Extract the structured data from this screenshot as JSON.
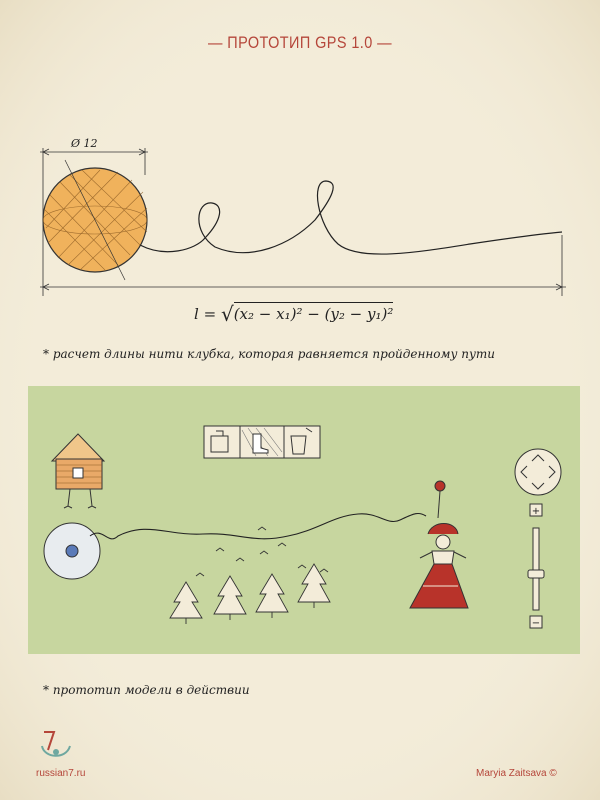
{
  "title": "— ПРОТОТИП GPS 1.0 —",
  "diagram": {
    "dimension_label": "Ø 12",
    "formula": {
      "lhs": "l",
      "eq": "=",
      "radical": "√",
      "term": "(x₂ − x₁)² − (y₂ − y₁)²"
    }
  },
  "notes": {
    "length": "* расчет длины нити клубка, которая равняется пройденному пути",
    "prototype": "* прототип модели в действии"
  },
  "controls": {
    "zoom_in": "+",
    "zoom_out": "−"
  },
  "footer": {
    "site": "russian7.ru",
    "author": "Maryia Zaitsava ©"
  },
  "icons": {
    "hut": "hut-on-chicken-legs-icon",
    "ball": "yarn-ball-icon",
    "girl": "russian-girl-icon",
    "trees": "fir-tree-icon",
    "birds": "bird-icon",
    "dpad": "direction-pad-icon",
    "toolbox": "inventory-icon"
  },
  "colors": {
    "paper": "#f3ecd9",
    "accent": "#b5463a",
    "panel": "#c7d69f",
    "yarn": "#f0b25c",
    "dress": "#b8332a"
  }
}
